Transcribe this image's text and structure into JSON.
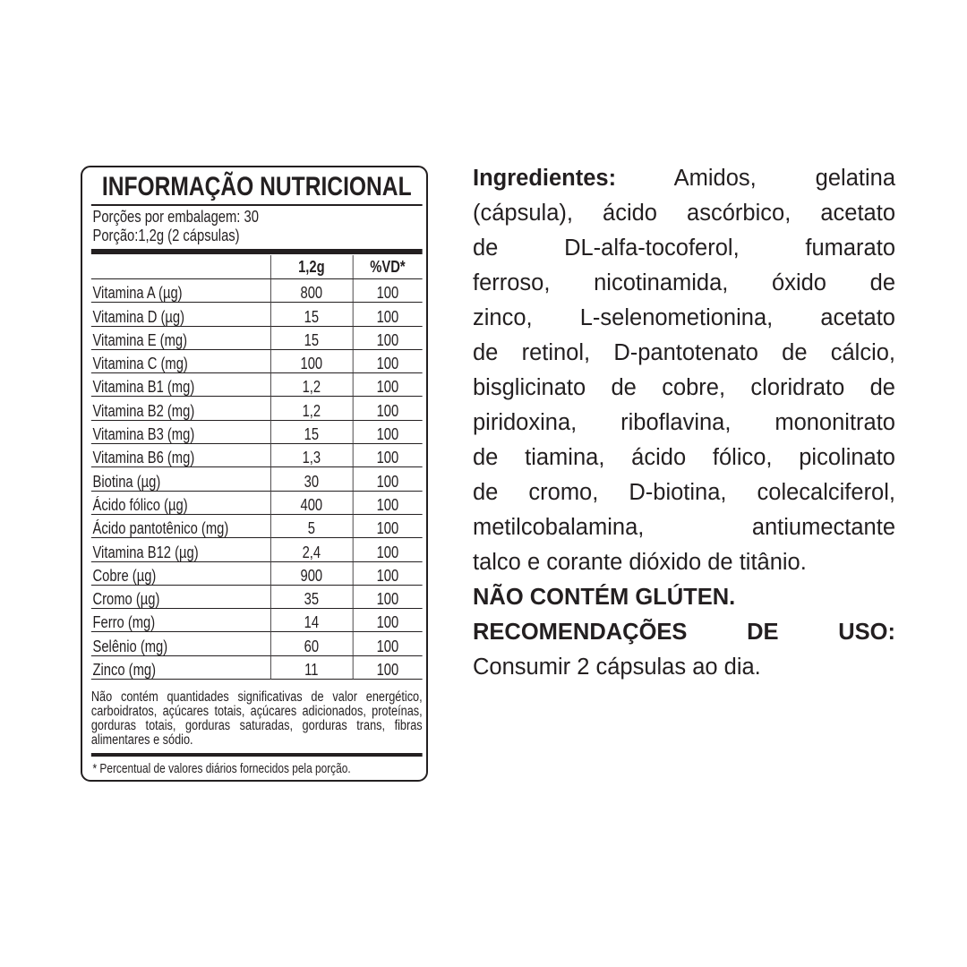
{
  "label": {
    "title": "INFORMAÇÃO NUTRICIONAL",
    "servings_per_package": "Porções por embalagem:  30",
    "serving_size": "Porção:1,2g (2 cápsulas)",
    "columns": [
      "",
      "1,2g",
      "%VD*"
    ],
    "rows": [
      {
        "name": "Vitamina A (µg)",
        "amount": "800",
        "vd": "100"
      },
      {
        "name": "Vitamina D (µg)",
        "amount": "15",
        "vd": "100"
      },
      {
        "name": "Vitamina E (mg)",
        "amount": "15",
        "vd": "100"
      },
      {
        "name": "Vitamina C (mg)",
        "amount": "100",
        "vd": "100"
      },
      {
        "name": "Vitamina B1 (mg)",
        "amount": "1,2",
        "vd": "100"
      },
      {
        "name": "Vitamina B2 (mg)",
        "amount": "1,2",
        "vd": "100"
      },
      {
        "name": "Vitamina B3 (mg)",
        "amount": "15",
        "vd": "100"
      },
      {
        "name": "Vitamina B6 (mg)",
        "amount": "1,3",
        "vd": "100"
      },
      {
        "name": "Biotina (µg)",
        "amount": "30",
        "vd": "100"
      },
      {
        "name": "Ácido fólico (µg)",
        "amount": "400",
        "vd": "100"
      },
      {
        "name": "Ácido pantotênico (mg)",
        "amount": "5",
        "vd": "100"
      },
      {
        "name": "Vitamina B12 (µg)",
        "amount": "2,4",
        "vd": "100"
      },
      {
        "name": "Cobre (µg)",
        "amount": "900",
        "vd": "100"
      },
      {
        "name": "Cromo (µg)",
        "amount": "35",
        "vd": "100"
      },
      {
        "name": "Ferro (mg)",
        "amount": "14",
        "vd": "100"
      },
      {
        "name": "Selênio (mg)",
        "amount": "60",
        "vd": "100"
      },
      {
        "name": "Zinco (mg)",
        "amount": "11",
        "vd": "100"
      }
    ],
    "note": "Não contém quantidades significativas de valor energético, carboidratos, açúcares totais, açúcares adicionados, proteínas, gorduras totais, gorduras saturadas, gorduras trans, fibras alimentares e sódio.",
    "footnote": "* Percentual de valores diários fornecidos pela porção."
  },
  "ingredients": {
    "heading": "Ingredientes:",
    "lines": [
      " Amidos, gelatina",
      "(cápsula), ácido ascórbico, acetato",
      "de DL-alfa-tocoferol, fumarato",
      "ferroso, nicotinamida, óxido de",
      "zinco, L-selenometionina, acetato",
      "de retinol, D-pantotenato de cálcio,",
      "bisglicinato de cobre, cloridrato de",
      "piridoxina, riboflavina, mononitrato",
      "de tiamina, ácido fólico, picolinato",
      "de cromo, D-biotina, colecalciferol,",
      "metilcobalamina, antiumectante",
      "talco e corante dióxido de titânio."
    ],
    "gluten": "NÃO CONTÉM GLÚTEN.",
    "usage_heading": "RECOMENDAÇÕES DE USO:",
    "usage": "Consumir 2 cápsulas ao dia."
  }
}
